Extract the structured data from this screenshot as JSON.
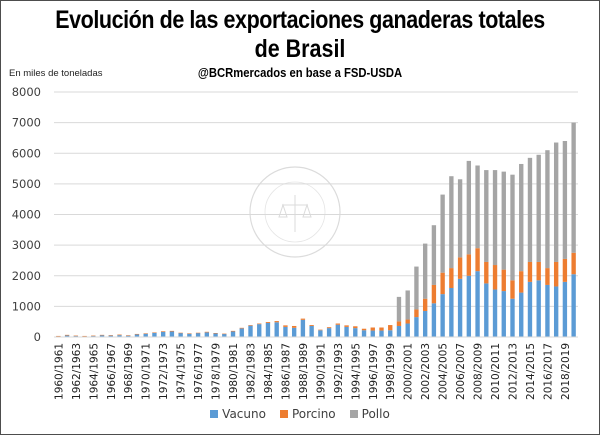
{
  "chart_data": {
    "type": "bar",
    "stacked": true,
    "title": "Evolución de las exportaciones ganaderas totales de Brasil",
    "title_lines": [
      "Evolución de las exportaciones ganaderas totales",
      "de Brasil"
    ],
    "subtitle": "@BCRmercados  en base a FSD-USDA",
    "ylabel": "En miles de toneladas",
    "xlabel": "",
    "ylim": [
      0,
      8000
    ],
    "yticks": [
      0,
      1000,
      2000,
      3000,
      4000,
      5000,
      6000,
      7000,
      8000
    ],
    "grid": true,
    "legend_position": "bottom",
    "watermark": "BOLSA DE COMERCIO DE ROSARIO",
    "categories": [
      "1960/1961",
      "1961/1962",
      "1962/1963",
      "1963/1964",
      "1964/1965",
      "1965/1966",
      "1966/1967",
      "1967/1968",
      "1968/1969",
      "1969/1970",
      "1970/1971",
      "1971/1972",
      "1972/1973",
      "1973/1974",
      "1974/1975",
      "1975/1976",
      "1976/1977",
      "1977/1978",
      "1978/1979",
      "1979/1980",
      "1980/1981",
      "1981/1982",
      "1982/1983",
      "1983/1984",
      "1984/1985",
      "1985/1986",
      "1986/1987",
      "1987/1988",
      "1988/1989",
      "1989/1990",
      "1990/1991",
      "1991/1992",
      "1992/1993",
      "1993/1994",
      "1994/1995",
      "1995/1996",
      "1996/1997",
      "1997/1998",
      "1998/1999",
      "1999/2000",
      "2000/2001",
      "2001/2002",
      "2002/2003",
      "2003/2004",
      "2004/2005",
      "2005/2006",
      "2006/2007",
      "2007/2008",
      "2008/2009",
      "2009/2010",
      "2010/2011",
      "2011/2012",
      "2012/2013",
      "2013/2014",
      "2014/2015",
      "2015/2016",
      "2016/2017",
      "2017/2018",
      "2018/2019",
      "2019/2020"
    ],
    "xtick_labels_shown_every": 2,
    "series": [
      {
        "name": "Vacuno",
        "color": "#5b9bd5",
        "values": [
          30,
          50,
          40,
          30,
          40,
          60,
          50,
          60,
          50,
          90,
          110,
          140,
          170,
          180,
          130,
          110,
          130,
          150,
          120,
          100,
          180,
          280,
          370,
          420,
          460,
          480,
          330,
          300,
          560,
          360,
          220,
          290,
          400,
          330,
          290,
          220,
          210,
          210,
          220,
          360,
          440,
          650,
          850,
          1100,
          1400,
          1600,
          1900,
          2000,
          2150,
          1750,
          1550,
          1500,
          1250,
          1450,
          1800,
          1850,
          1700,
          1650,
          1800,
          2050
        ]
      },
      {
        "name": "Porcino",
        "color": "#ed7d31",
        "values": [
          5,
          20,
          5,
          5,
          5,
          10,
          10,
          20,
          5,
          10,
          10,
          10,
          20,
          20,
          10,
          10,
          10,
          20,
          10,
          10,
          20,
          20,
          20,
          20,
          30,
          40,
          50,
          60,
          40,
          30,
          20,
          30,
          40,
          50,
          60,
          50,
          100,
          100,
          170,
          150,
          130,
          250,
          400,
          600,
          700,
          650,
          700,
          700,
          750,
          700,
          800,
          700,
          600,
          700,
          650,
          600,
          550,
          800,
          750,
          700
        ]
      },
      {
        "name": "Pollo",
        "color": "#a5a5a5",
        "values": [
          0,
          0,
          0,
          0,
          0,
          0,
          0,
          0,
          0,
          0,
          0,
          0,
          0,
          0,
          0,
          0,
          0,
          0,
          0,
          0,
          0,
          0,
          0,
          0,
          0,
          0,
          0,
          0,
          0,
          0,
          0,
          0,
          0,
          0,
          0,
          0,
          0,
          0,
          0,
          800,
          950,
          1400,
          1800,
          1950,
          2550,
          3000,
          2550,
          3050,
          2700,
          3000,
          3100,
          3200,
          3450,
          3500,
          3400,
          3500,
          3850,
          3900,
          3850,
          4250
        ]
      }
    ]
  }
}
